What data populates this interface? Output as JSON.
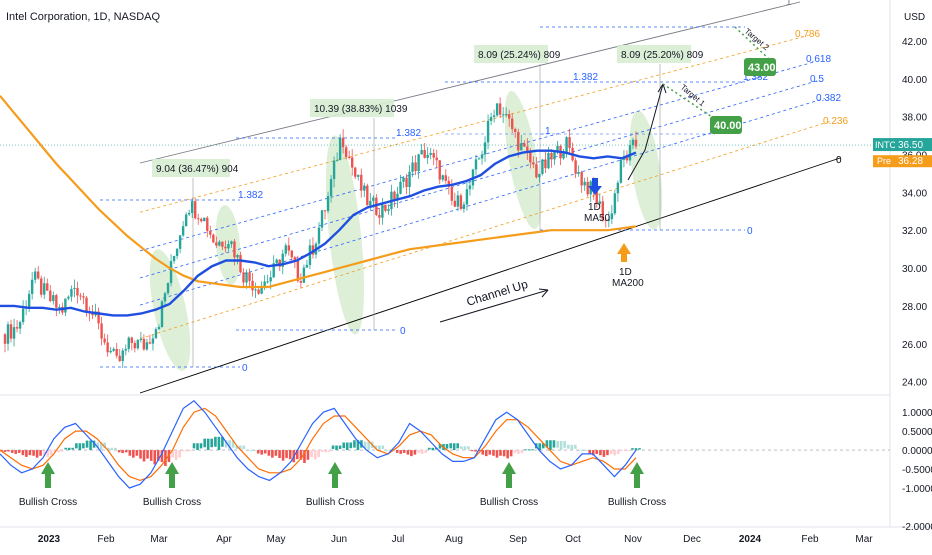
{
  "header": {
    "title": "Intel Corporation, 1D, NASDAQ",
    "currency": "USD"
  },
  "chart_data": {
    "type": "candlestick",
    "symbol": "INTC",
    "timeframe": "1D",
    "exchange": "NASDAQ",
    "x_labels": [
      "2023",
      "Feb",
      "Mar",
      "Apr",
      "May",
      "Jun",
      "Jul",
      "Aug",
      "Sep",
      "Oct",
      "Nov",
      "Dec",
      "2024",
      "Feb",
      "Mar"
    ],
    "price_axis": {
      "ticks": [
        "42.00",
        "40.00",
        "38.00",
        "36.00",
        "34.00",
        "32.00",
        "30.00",
        "28.00",
        "26.00",
        "24.00"
      ],
      "range": [
        23.4,
        43.9
      ],
      "last_price_label": "INTC",
      "last_price": "36.50",
      "prev_label": "Pre",
      "prev_price": "36.28"
    },
    "macd_axis": {
      "ticks": [
        "1.0000",
        "0.5000",
        "0.0000",
        "-0.5000",
        "-1.0000",
        "-2.0000"
      ],
      "range": [
        -1.95,
        1.4
      ]
    },
    "price": {
      "close": [
        26.5,
        27.0,
        29.5,
        28.5,
        27.7,
        29.1,
        28.0,
        26.3,
        24.9,
        26.1,
        25.9,
        27.3,
        30.5,
        33.4,
        32.9,
        31.3,
        31.6,
        29.7,
        29.0,
        29.6,
        31.0,
        29.5,
        31.2,
        33.6,
        37.1,
        34.8,
        33.3,
        33.1,
        34.0,
        35.2,
        36.2,
        35.1,
        33.2,
        34.0,
        36.2,
        38.8,
        37.6,
        36.1,
        35.0,
        35.8,
        36.6,
        34.8,
        33.9,
        32.3,
        35.6,
        36.5
      ],
      "ma50": [
        28.0,
        28.0,
        27.9,
        27.9,
        27.8,
        27.9,
        27.7,
        27.6,
        27.5,
        27.5,
        27.6,
        27.8,
        28.1,
        28.8,
        29.6,
        30.1,
        30.4,
        30.4,
        30.3,
        30.1,
        30.2,
        30.4,
        30.8,
        31.3,
        32.0,
        32.8,
        33.2,
        33.4,
        33.6,
        33.8,
        34.1,
        34.3,
        34.4,
        34.6,
        34.9,
        35.5,
        35.9,
        36.1,
        36.2,
        36.2,
        36.1,
        35.9,
        35.8,
        35.9,
        35.8,
        36.1
      ],
      "ma200": [
        39.1,
        38.2,
        37.3,
        36.4,
        35.5,
        34.7,
        33.9,
        33.1,
        32.4,
        31.7,
        31.1,
        30.5,
        30.0,
        29.6,
        29.3,
        29.2,
        29.1,
        29.0,
        29.0,
        29.0,
        29.2,
        29.4,
        29.6,
        29.8,
        30.0,
        30.2,
        30.4,
        30.6,
        30.8,
        31.0,
        31.1,
        31.2,
        31.3,
        31.4,
        31.5,
        31.6,
        31.7,
        31.8,
        31.9,
        32.0,
        32.0,
        32.0,
        32.0,
        32.0,
        32.1,
        32.2
      ]
    },
    "macd": {
      "histogram": [
        -0.05,
        -0.1,
        -0.18,
        -0.2,
        -0.18,
        -0.06,
        0.06,
        0.18,
        0.25,
        0.2,
        0.06,
        -0.08,
        -0.2,
        -0.3,
        -0.38,
        -0.42,
        -0.26,
        -0.04,
        0.18,
        0.3,
        0.35,
        0.26,
        0.12,
        0.0,
        -0.12,
        -0.2,
        -0.28,
        -0.32,
        -0.34,
        -0.25,
        -0.06,
        0.12,
        0.2,
        0.26,
        0.22,
        0.12,
        0.0,
        -0.1,
        -0.16,
        -0.1,
        0.06,
        0.16,
        0.18,
        0.1,
        -0.04,
        -0.16,
        -0.2,
        -0.22,
        -0.1,
        0.02,
        0.18,
        0.26,
        0.24,
        0.14,
        0.0,
        -0.14,
        -0.18,
        -0.14,
        -0.02,
        0.05
      ],
      "macd_line": [
        -0.1,
        -0.4,
        -0.6,
        -0.5,
        -0.2,
        0.3,
        0.6,
        0.7,
        0.4,
        0.1,
        -0.3,
        -0.7,
        -1.0,
        -0.9,
        -0.6,
        -0.1,
        0.5,
        1.1,
        1.3,
        1.0,
        0.6,
        0.2,
        -0.2,
        -0.5,
        -0.7,
        -0.8,
        -0.6,
        -0.3,
        0.2,
        0.7,
        1.0,
        1.1,
        0.7,
        0.3,
        0.0,
        -0.2,
        -0.1,
        0.2,
        0.7,
        0.5,
        0.2,
        -0.1,
        -0.3,
        -0.3,
        -0.2,
        0.3,
        0.8,
        1.0,
        0.8,
        0.4,
        0.0,
        -0.3,
        -0.5,
        -0.4,
        -0.1,
        -0.1,
        -0.4,
        -0.7,
        -0.4,
        0.0
      ],
      "signal_line": [
        0.0,
        -0.2,
        -0.4,
        -0.5,
        -0.4,
        -0.1,
        0.3,
        0.5,
        0.5,
        0.3,
        0.0,
        -0.4,
        -0.7,
        -0.8,
        -0.7,
        -0.4,
        0.0,
        0.6,
        1.0,
        1.1,
        0.9,
        0.5,
        0.1,
        -0.2,
        -0.5,
        -0.6,
        -0.6,
        -0.5,
        -0.2,
        0.3,
        0.7,
        0.9,
        0.9,
        0.6,
        0.3,
        0.0,
        -0.1,
        0.1,
        0.4,
        0.5,
        0.4,
        0.1,
        -0.1,
        -0.2,
        -0.2,
        0.1,
        0.5,
        0.8,
        0.8,
        0.6,
        0.3,
        0.0,
        -0.3,
        -0.4,
        -0.3,
        -0.2,
        -0.3,
        -0.5,
        -0.5,
        -0.2
      ]
    },
    "channel": {
      "fib_levels": [
        {
          "label": "1",
          "color": "#787b86"
        },
        {
          "label": "0.786",
          "color": "#f59c1a"
        },
        {
          "label": "0.618",
          "color": "#2962ff"
        },
        {
          "label": "0.5",
          "color": "#2962ff"
        },
        {
          "label": "0.382",
          "color": "#2962ff"
        },
        {
          "label": "0.236",
          "color": "#f59c1a"
        },
        {
          "label": "0",
          "color": "#000000"
        }
      ],
      "label": "Channel Up"
    },
    "annotations": {
      "rallies": [
        {
          "text": "9.04 (36.47%) 904",
          "ext": "1.382",
          "base": "0"
        },
        {
          "text": "10.39 (38.83%) 1039",
          "ext": "1.382",
          "base": "0"
        },
        {
          "text": "8.09 (25.24%) 809",
          "ext": "1.382",
          "mid": "1"
        },
        {
          "text": "8.09 (25.20%) 809",
          "ext": "1.382",
          "mid": "1",
          "base": "0"
        }
      ],
      "targets": [
        {
          "label": "Target 1",
          "price": "40.00"
        },
        {
          "label": "Target 2",
          "price": "43.00"
        }
      ],
      "ma50_marker": {
        "line1": "1D",
        "line2": "MA50"
      },
      "ma200_marker": {
        "line1": "1D",
        "line2": "MA200"
      },
      "bullish_cross": [
        "Bullish Cross",
        "Bullish Cross",
        "Bullish Cross",
        "Bullish Cross",
        "Bullish Cross"
      ]
    },
    "colors": {
      "up": "#26a69a",
      "down": "#ef5350",
      "ma50": "#1f4fe0",
      "ma200": "#f59c1a",
      "macd_line": "#2962ff",
      "signal_line": "#ff6d00",
      "target_box": "#43a047",
      "highlight": "#cfe8c4"
    }
  }
}
